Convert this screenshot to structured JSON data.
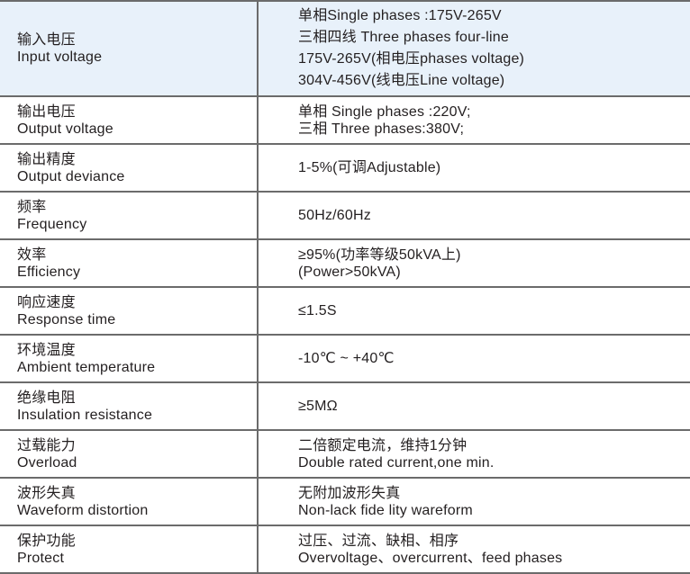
{
  "colors": {
    "highlight_row": "#e8f1fa",
    "border": "#6b6b6b",
    "text": "#231f20"
  },
  "rows": [
    {
      "label_cn": "输入电压",
      "label_en": "Input voltage",
      "values": [
        "单相Single phases :175V-265V",
        "三相四线 Three phases four-line",
        "175V-265V(相电压phases voltage)",
        "304V-456V(线电压Line voltage)"
      ]
    },
    {
      "label_cn": "输出电压",
      "label_en": "Output voltage",
      "values": [
        "单相 Single phases :220V;",
        "三相 Three phases:380V;"
      ]
    },
    {
      "label_cn": "输出精度",
      "label_en": "Output deviance",
      "values": [
        "1-5%(可调Adjustable)"
      ]
    },
    {
      "label_cn": "频率",
      "label_en": "Frequency",
      "values": [
        "50Hz/60Hz"
      ]
    },
    {
      "label_cn": "效率",
      "label_en": "Efficiency",
      "values": [
        "≥95%(功率等级50kVA上)",
        "(Power>50kVA)"
      ]
    },
    {
      "label_cn": "响应速度",
      "label_en": "Response time",
      "values": [
        "≤1.5S"
      ]
    },
    {
      "label_cn": "环境温度",
      "label_en": "Ambient temperature",
      "values": [
        "-10℃ ~ +40℃"
      ]
    },
    {
      "label_cn": "绝缘电阻",
      "label_en": "Insulation resistance",
      "values": [
        "≥5MΩ"
      ]
    },
    {
      "label_cn": "过载能力",
      "label_en": "Overload",
      "values": [
        "二倍额定电流，维持1分钟",
        "Double rated current,one min."
      ]
    },
    {
      "label_cn": "波形失真",
      "label_en": "Waveform distortion",
      "values": [
        "无附加波形失真",
        "Non-lack fide lity wareform"
      ]
    },
    {
      "label_cn": "保护功能",
      "label_en": "Protect",
      "values": [
        "过压、过流、缺相、相序",
        "Overvoltage、overcurrent、feed phases"
      ]
    }
  ]
}
